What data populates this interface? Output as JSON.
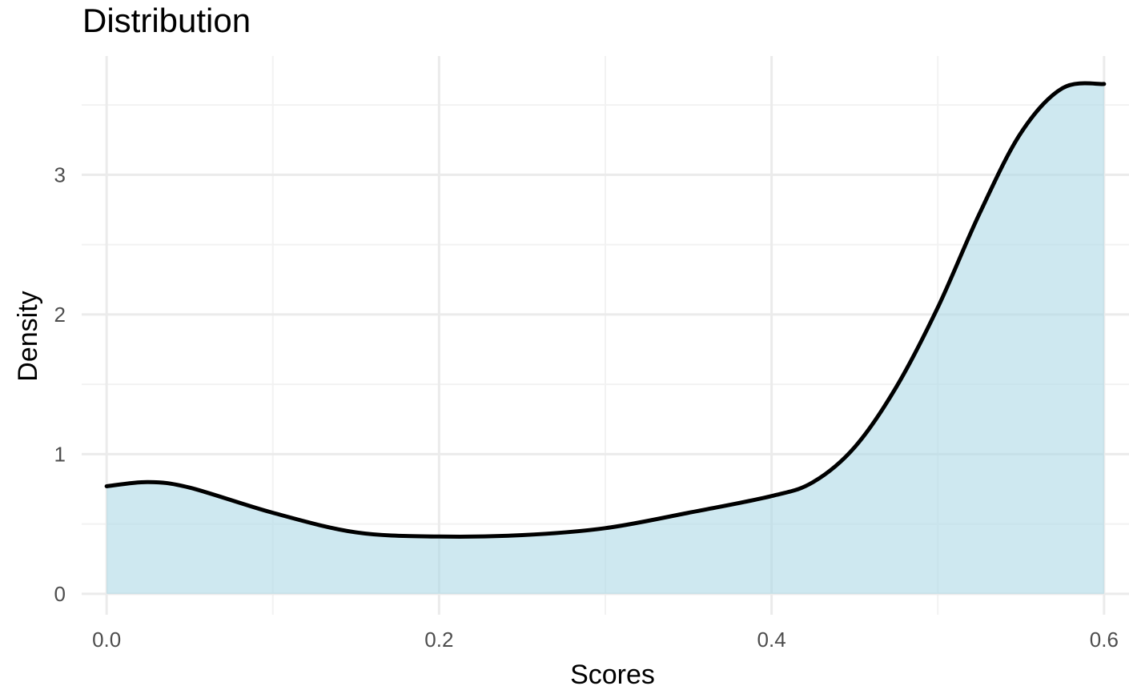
{
  "chart_data": {
    "type": "area",
    "title": "Distribution",
    "xlabel": "Scores",
    "ylabel": "Density",
    "xlim": [
      -0.015,
      0.615
    ],
    "ylim": [
      -0.15,
      3.85
    ],
    "x_ticks": [
      0.0,
      0.2,
      0.4,
      0.6
    ],
    "x_tick_labels": [
      "0.0",
      "0.2",
      "0.4",
      "0.6"
    ],
    "x_minor_ticks": [
      0.1,
      0.3,
      0.5
    ],
    "y_ticks": [
      0,
      1,
      2,
      3
    ],
    "y_tick_labels": [
      "0",
      "1",
      "2",
      "3"
    ],
    "y_minor_ticks": [
      0.5,
      1.5,
      2.5,
      3.5
    ],
    "grid": true,
    "fill_color": "#add8e6",
    "fill_opacity": 0.6,
    "line_color": "#000000",
    "series": [
      {
        "x": [
          0.0,
          0.025,
          0.05,
          0.1,
          0.15,
          0.2,
          0.25,
          0.3,
          0.35,
          0.4,
          0.425,
          0.45,
          0.475,
          0.5,
          0.525,
          0.55,
          0.575,
          0.6
        ],
        "y": [
          0.77,
          0.8,
          0.76,
          0.58,
          0.44,
          0.41,
          0.42,
          0.47,
          0.58,
          0.7,
          0.8,
          1.05,
          1.48,
          2.05,
          2.72,
          3.3,
          3.62,
          3.65
        ]
      }
    ]
  }
}
